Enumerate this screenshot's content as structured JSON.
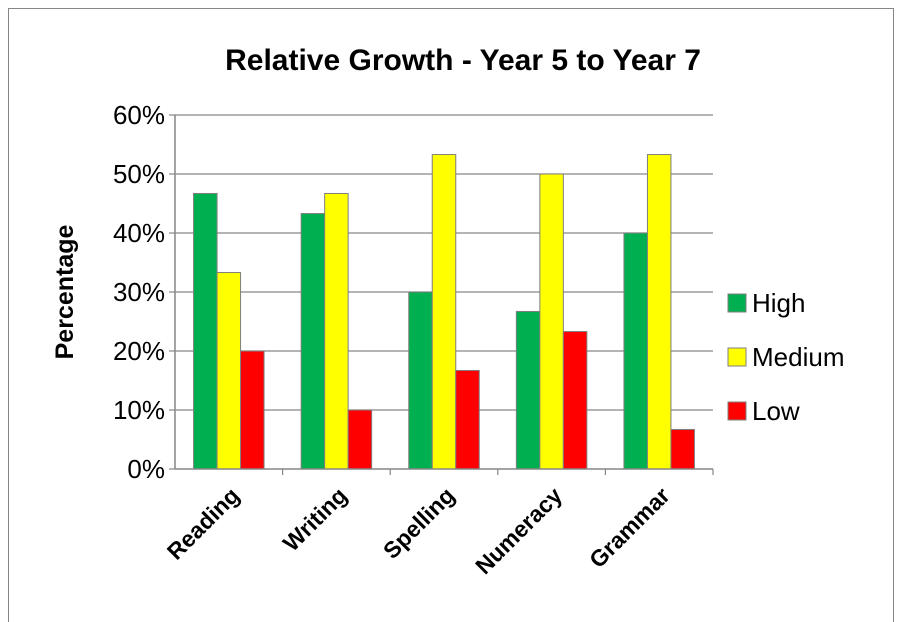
{
  "chart_data": {
    "type": "bar",
    "title": "Relative Growth - Year 5 to Year 7",
    "xlabel": "",
    "ylabel": "Percentage",
    "categories": [
      "Reading",
      "Writing",
      "Spelling",
      "Numeracy",
      "Grammar"
    ],
    "series": [
      {
        "name": "High",
        "color": "#00b050",
        "values": [
          46.7,
          43.3,
          30.0,
          26.7,
          40.0
        ]
      },
      {
        "name": "Medium",
        "color": "#ffff00",
        "values": [
          33.3,
          46.7,
          53.3,
          50.0,
          53.3
        ]
      },
      {
        "name": "Low",
        "color": "#ff0000",
        "values": [
          20.0,
          10.0,
          16.7,
          23.3,
          6.7
        ]
      }
    ],
    "ylim": [
      0,
      60
    ],
    "yticks": [
      "0%",
      "10%",
      "20%",
      "30%",
      "40%",
      "50%",
      "60%"
    ],
    "grid": true,
    "legend_position": "right"
  }
}
